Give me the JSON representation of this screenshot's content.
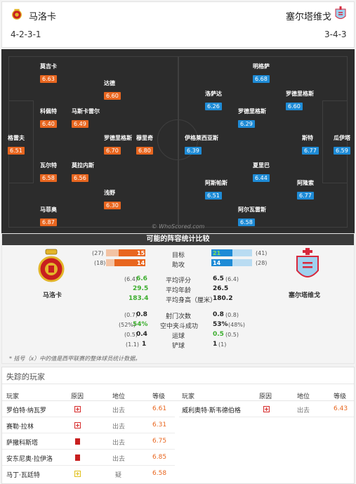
{
  "header": {
    "home_team": "马洛卡",
    "home_formation": "4-2-3-1",
    "away_team": "塞尔塔维戈",
    "away_formation": "3-4-3"
  },
  "pitch": {
    "watermark": "© WhoScored.com",
    "home_players": [
      {
        "name": "莫吉卡",
        "rating": "6.63"
      },
      {
        "name": "达德",
        "rating": "6.60"
      },
      {
        "name": "科佩特",
        "rating": "6.40"
      },
      {
        "name": "马斯卡雷尔",
        "rating": "6.49"
      },
      {
        "name": "格雷夫",
        "rating": "6.51"
      },
      {
        "name": "罗德里格斯",
        "rating": "6.70"
      },
      {
        "name": "穆里奇",
        "rating": "6.80"
      },
      {
        "name": "瓦尔特",
        "rating": "6.58"
      },
      {
        "name": "莫拉内斯",
        "rating": "6.56"
      },
      {
        "name": "浅野",
        "rating": "6.30"
      },
      {
        "name": "马菲奥",
        "rating": "6.87"
      }
    ],
    "away_players": [
      {
        "name": "明格萨",
        "rating": "6.68"
      },
      {
        "name": "洛萨达",
        "rating": "6.26"
      },
      {
        "name": "罗德里格斯",
        "rating": "6.60"
      },
      {
        "name": "罗德里格斯",
        "rating": "6.29"
      },
      {
        "name": "伊格莱西亚斯",
        "rating": "6.39"
      },
      {
        "name": "斯特",
        "rating": "6.77"
      },
      {
        "name": "瓜伊塔",
        "rating": "6.59"
      },
      {
        "name": "夏里巴",
        "rating": "6.44"
      },
      {
        "name": "阿斯帕斯",
        "rating": "6.51"
      },
      {
        "name": "阿隆索",
        "rating": "6.77"
      },
      {
        "name": "阿尔瓦雷斯",
        "rating": "6.58"
      }
    ]
  },
  "comparison": {
    "title": "可能的阵容统计比较",
    "home_name": "马洛卡",
    "away_name": "塞尔塔维戈",
    "goals": {
      "label": "目标",
      "home_total": "(27)",
      "home": "15",
      "away": "21",
      "away_total": "(41)"
    },
    "assists": {
      "label": "助攻",
      "home_total": "(18)",
      "home": "14",
      "away": "14",
      "away_total": "(28)"
    },
    "stats": [
      {
        "label": "平均评分",
        "home_sub": "(6.4)",
        "home": "6.6",
        "away": "6.5",
        "away_sub": "(6.4)",
        "home_green": true,
        "away_green": false
      },
      {
        "label": "平均年龄",
        "home_sub": "",
        "home": "29.5",
        "away": "26.5",
        "away_sub": "",
        "home_green": true,
        "away_green": false
      },
      {
        "label": "平均身高（厘米）",
        "home_sub": "",
        "home": "183.4",
        "away": "180.2",
        "away_sub": "",
        "home_green": true,
        "away_green": false
      }
    ],
    "stats2": [
      {
        "label": "射门次数",
        "home_sub": "(0.7)",
        "home": "0.8",
        "away": "0.8",
        "away_sub": "(0.8)",
        "home_green": false,
        "away_green": false
      },
      {
        "label": "空中夹斗成功",
        "home_sub": "(52%)",
        "home": "54%",
        "away": "53%",
        "away_sub": "(48%)",
        "home_green": true,
        "away_green": false
      },
      {
        "label": "运球",
        "home_sub": "(0.5)",
        "home": "0.4",
        "away": "0.5",
        "away_sub": "(0.5)",
        "home_green": false,
        "away_green": true
      },
      {
        "label": "铲球",
        "home_sub": "(1.1)",
        "home": "1",
        "away": "1",
        "away_sub": "(1)",
        "home_green": false,
        "away_green": false
      }
    ],
    "footnote": "* 括号（x）中的值是西甲联赛的整体球员统计数据。",
    "colors": {
      "home": "#e8661f",
      "away": "#1e8bd6",
      "green": "#3cae2e"
    }
  },
  "injuries": {
    "title": "失踪的玩家",
    "headers": {
      "player": "玩家",
      "reason": "原因",
      "status": "地位",
      "rating": "等级"
    },
    "left": [
      {
        "player": "罗伯特·纳瓦罗",
        "reason_icon": "injury-cross-icon",
        "status": "出去",
        "rating": "6.61"
      },
      {
        "player": "赛勒·拉林",
        "reason_icon": "injury-cross-icon",
        "status": "出去",
        "rating": "6.31"
      },
      {
        "player": "萨撒科斯塔",
        "reason_icon": "red-card-icon",
        "status": "出去",
        "rating": "6.75"
      },
      {
        "player": "安东尼奥·拉伊洛",
        "reason_icon": "red-card-icon",
        "status": "出去",
        "rating": "6.85"
      },
      {
        "player": "马丁·瓦廷特",
        "reason_icon": "doubtful-cross-icon",
        "status": "疑",
        "rating": "6.58"
      }
    ],
    "right": [
      {
        "player": "威利奥特·斯韦德伯格",
        "reason_icon": "injury-cross-icon",
        "status": "出去",
        "rating": "6.43"
      }
    ]
  }
}
